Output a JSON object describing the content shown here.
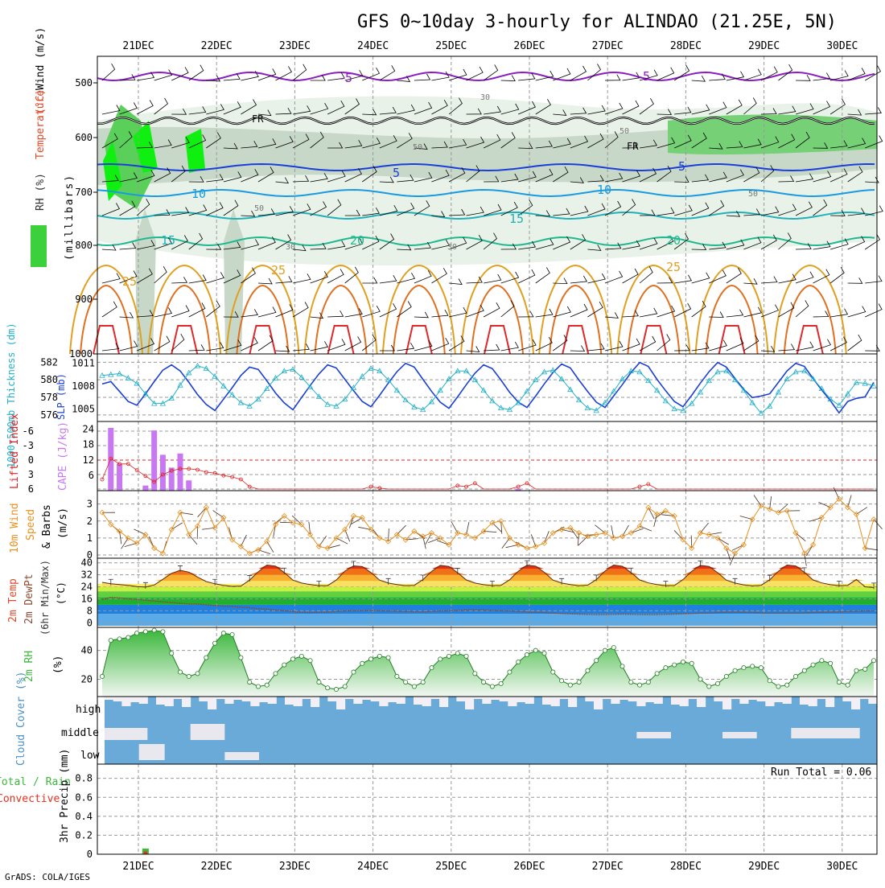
{
  "title": "GFS 0~10day 3-hourly for ALINDAO (21.25E, 5N)",
  "credit": "GrADS: COLA/IGES",
  "dates": [
    "21DEC",
    "22DEC",
    "23DEC",
    "24DEC",
    "25DEC",
    "26DEC",
    "27DEC",
    "28DEC",
    "29DEC",
    "30DEC"
  ],
  "colors": {
    "purple": "#8a1cc0",
    "blue": "#1a3fd8",
    "cyan": "#22b0c8",
    "orange": "#e89020",
    "green": "#3cb83c",
    "cloud": "#6aaad8",
    "rain": "#e83020"
  },
  "chart_data": [
    {
      "type": "line",
      "panel": "upper-air",
      "ylabel_parts": [
        "RH (%)",
        "Temperature",
        "(°C)",
        "Wind (m/s)"
      ],
      "ylabel_units": "(millibars)",
      "yticks": [
        "500",
        "600",
        "700",
        "800",
        "900",
        "1000"
      ],
      "ylim": [
        1000,
        450
      ],
      "contour_labels": [
        "-5",
        "-5",
        "FR",
        "FR",
        "5",
        "5",
        "10",
        "10",
        "15",
        "15",
        "20",
        "20",
        "25",
        "25",
        "25",
        "30",
        "30",
        "30",
        "50",
        "50",
        "50",
        "50"
      ]
    },
    {
      "type": "line",
      "panel": "thickness-slp",
      "ylabel_left": "1000-500mb Thickness (dm)",
      "ylabel_right": "SLP (mb)",
      "yticks_left": [
        "582",
        "580",
        "578",
        "576"
      ],
      "yticks_right": [
        "1011",
        "1008",
        "1005"
      ],
      "series": [
        {
          "name": "SLP (mb)",
          "color": "#1a3fd8",
          "values": [
            1008.3,
            1008.6,
            1007.3,
            1006.0,
            1005.5,
            1007.0,
            1008.6,
            1010.1,
            1010.8,
            1010.0,
            1008.5,
            1006.9,
            1005.6,
            1004.8,
            1006.3,
            1007.8,
            1009.4,
            1010.5,
            1010.2,
            1008.7,
            1007.1,
            1005.8,
            1004.9,
            1006.5,
            1008.1,
            1009.6,
            1010.8,
            1010.4,
            1008.9,
            1007.4,
            1006.0,
            1005.3,
            1006.8,
            1008.4,
            1009.9,
            1011.0,
            1010.5,
            1008.9,
            1007.3,
            1005.9,
            1005.1,
            1006.6,
            1008.2,
            1009.7,
            1010.8,
            1010.3,
            1008.8,
            1007.2,
            1005.9,
            1005.2,
            1006.7,
            1008.3,
            1009.8,
            1010.9,
            1010.4,
            1008.8,
            1007.3,
            1005.9,
            1005.2,
            1006.7,
            1008.2,
            1009.8,
            1011.1,
            1010.6,
            1008.9,
            1007.4,
            1006.0,
            1005.3,
            1006.8,
            1008.4,
            1009.9,
            1011.1,
            1010.5,
            1009.0,
            1007.6,
            1006.5,
            1006.7,
            1007.0,
            1008.5,
            1010.0,
            1011.0,
            1010.6,
            1009.0,
            1007.5,
            1006.1,
            1004.5,
            1006.0,
            1006.4,
            1006.6,
            1008.5
          ]
        },
        {
          "name": "1000-500mb Thickness (dm)",
          "color": "#22b0c8",
          "values": [
            580.5,
            580.6,
            580.7,
            580.2,
            579.6,
            578.4,
            577.3,
            577.3,
            577.9,
            579.4,
            580.8,
            581.6,
            581.3,
            580.4,
            579.3,
            578.3,
            577.4,
            577.0,
            577.8,
            579.0,
            580.2,
            581.0,
            581.2,
            580.3,
            579.2,
            578.1,
            577.2,
            577.0,
            577.8,
            579.1,
            580.4,
            581.3,
            581.0,
            580.0,
            578.8,
            577.7,
            576.9,
            576.6,
            577.5,
            578.8,
            580.1,
            581.0,
            581.0,
            580.0,
            578.8,
            577.6,
            576.8,
            576.6,
            577.4,
            578.7,
            580.0,
            580.9,
            581.1,
            580.1,
            578.9,
            577.7,
            576.8,
            576.5,
            577.4,
            578.7,
            580.1,
            581.0,
            580.9,
            579.9,
            578.8,
            577.6,
            576.7,
            576.5,
            577.3,
            578.6,
            579.9,
            580.9,
            581.0,
            580.0,
            578.8,
            577.4,
            576.2,
            577.0,
            578.6,
            580.1,
            580.9,
            581.0,
            580.1,
            579.0,
            577.8,
            577.1,
            578.4,
            579.7,
            579.6,
            579.3
          ]
        }
      ]
    },
    {
      "type": "bar",
      "panel": "cape-li",
      "ylabel_left": "Lifted Index",
      "ylabel_right": "CAPE (J/kg)",
      "yticks_left": [
        "-6",
        "-3",
        "0",
        "3",
        "6"
      ],
      "yticks_right": [
        "24",
        "18",
        "12",
        "6"
      ],
      "series": [
        {
          "name": "CAPE (J/kg)",
          "color": "#c878f0",
          "x": [
            1,
            2,
            5,
            6,
            7,
            8,
            9,
            10,
            48
          ],
          "values": [
            24.5,
            10.5,
            2.0,
            23.5,
            14.0,
            9.0,
            14.5,
            4.0,
            0.8
          ]
        },
        {
          "name": "Lifted Index",
          "color": "#e02020",
          "values": [
            4.0,
            -0.3,
            0.8,
            0.8,
            2.1,
            3.3,
            4.5,
            3.0,
            2.2,
            1.8,
            1.8,
            2.0,
            2.5,
            2.7,
            3.2,
            3.5,
            4.0,
            5.5,
            6.0,
            6.0,
            6.0,
            6.0,
            6.0,
            6.0,
            6.0,
            6.0,
            6.0,
            6.0,
            6.0,
            6.0,
            6.0,
            5.5,
            5.8,
            6.0,
            6.0,
            6.0,
            6.0,
            6.0,
            6.0,
            6.0,
            6.0,
            5.3,
            5.5,
            4.8,
            6.0,
            6.0,
            6.0,
            6.0,
            5.5,
            4.8,
            6.0,
            6.0,
            6.0,
            6.0,
            6.0,
            6.0,
            6.0,
            6.0,
            6.0,
            6.0,
            6.0,
            6.0,
            5.5,
            5.0,
            6.0,
            6.0,
            6.0,
            6.0,
            6.0,
            6.0,
            6.0,
            6.0,
            6.0,
            6.0,
            6.0,
            6.0,
            6.0,
            6.0,
            6.0,
            6.0,
            6.0,
            6.0,
            6.0,
            6.0,
            6.0,
            6.0,
            6.0,
            6.0,
            6.0,
            6.0
          ]
        }
      ]
    },
    {
      "type": "line",
      "panel": "wind10m",
      "ylabel_parts": [
        "10m Wind",
        "Speed",
        "& Barbs",
        "(m/s)"
      ],
      "yticks": [
        "3",
        "2",
        "1",
        "0"
      ],
      "ylim": [
        0,
        3.6
      ],
      "series": [
        {
          "name": "10m Wind Speed (m/s)",
          "color": "#e89020",
          "values": [
            2.5,
            1.8,
            1.4,
            1.0,
            0.7,
            1.2,
            0.4,
            0.1,
            1.5,
            2.5,
            1.2,
            1.7,
            2.8,
            1.6,
            2.2,
            0.9,
            0.5,
            0.1,
            0.3,
            0.8,
            1.8,
            2.3,
            1.9,
            1.8,
            1.2,
            0.5,
            0.4,
            1.0,
            1.5,
            2.3,
            2.2,
            1.5,
            1.0,
            0.8,
            1.2,
            0.9,
            1.4,
            1.1,
            1.3,
            1.0,
            0.6,
            1.3,
            1.2,
            1.0,
            1.4,
            1.9,
            2.0,
            1.0,
            0.6,
            0.4,
            0.5,
            0.7,
            1.3,
            1.5,
            1.6,
            1.3,
            1.1,
            1.2,
            1.3,
            1.0,
            1.1,
            1.3,
            1.7,
            2.8,
            2.4,
            2.6,
            2.3,
            0.9,
            0.4,
            1.3,
            1.2,
            1.0,
            0.4,
            0.1,
            0.6,
            2.1,
            2.9,
            2.7,
            2.5,
            2.6,
            1.3,
            0.1,
            0.6,
            2.2,
            2.8,
            3.3,
            2.8,
            2.4,
            0.4,
            2.1
          ]
        }
      ]
    },
    {
      "type": "area",
      "panel": "temperature",
      "ylabel_parts": [
        "2m Temp",
        "2m DewPt",
        "(6hr Min/Max)",
        "(°C)"
      ],
      "yticks": [
        "40",
        "32",
        "24",
        "16",
        "8",
        "0"
      ],
      "ylim": [
        -2,
        42
      ],
      "series": [
        {
          "name": "2m Temp (°C)",
          "color": "#e8601c",
          "values": [
            27.0,
            26.0,
            25.5,
            25.0,
            24.2,
            23.8,
            25.2,
            29.0,
            33.0,
            35.0,
            33.8,
            30.5,
            27.5,
            26.0,
            25.0,
            24.3,
            24.5,
            28.5,
            34.0,
            38.5,
            37.8,
            33.5,
            28.5,
            26.5,
            25.5,
            24.8,
            24.8,
            28.5,
            34.5,
            38.0,
            37.5,
            33.5,
            28.5,
            26.5,
            25.5,
            24.8,
            25.0,
            28.8,
            34.3,
            38.3,
            37.6,
            33.4,
            28.6,
            26.5,
            25.4,
            24.8,
            25.0,
            28.7,
            34.4,
            38.4,
            37.8,
            33.7,
            28.5,
            26.5,
            25.5,
            24.7,
            25.1,
            28.8,
            34.5,
            38.5,
            37.7,
            33.5,
            28.6,
            26.6,
            25.5,
            24.8,
            24.9,
            28.8,
            34.3,
            38.3,
            37.6,
            33.4,
            28.5,
            26.5,
            25.3,
            24.6,
            25.0,
            28.7,
            34.4,
            38.5,
            37.9,
            33.7,
            28.6,
            26.6,
            25.4,
            24.8,
            25.0,
            28.9,
            24.0,
            23.5
          ]
        },
        {
          "name": "2m DewPt (°C)",
          "color": "#8a4a30",
          "values": [
            15.5,
            17.0,
            16.5,
            16.0,
            15.5,
            15.0,
            14.5,
            14.0,
            13.5,
            13.0,
            12.5,
            12.5,
            12.0,
            11.5,
            11.0,
            10.8,
            10.5,
            10.0,
            9.5,
            9.0,
            8.5,
            8.0,
            7.5,
            7.0,
            6.8,
            7.0,
            7.2,
            7.5,
            7.8,
            8.0,
            8.0,
            8.2,
            8.0,
            7.8,
            7.6,
            7.5,
            7.4,
            7.3,
            7.5,
            7.8,
            8.0,
            8.2,
            8.5,
            8.6,
            8.5,
            8.2,
            8.0,
            7.8,
            7.5,
            7.3,
            7.0,
            6.8,
            6.5,
            6.2,
            6.0,
            5.8,
            5.6,
            5.5,
            5.5,
            5.6,
            5.8,
            5.6,
            5.5,
            5.5,
            5.5,
            5.6,
            5.8,
            6.0,
            6.2,
            6.4,
            6.5,
            6.8,
            7.0,
            7.2,
            7.0,
            6.8,
            6.6,
            6.5,
            6.5,
            6.5,
            6.5,
            6.6,
            6.8,
            7.0,
            7.2,
            7.3,
            7.5,
            7.6,
            7.8,
            7.8
          ]
        }
      ]
    },
    {
      "type": "area",
      "panel": "rh2m",
      "ylabel_parts": [
        "2m RH",
        "(%)"
      ],
      "yticks": [
        "40",
        "20"
      ],
      "ylim": [
        8,
        56
      ],
      "series": [
        {
          "name": "2m RH (%)",
          "color": "#3cb83c",
          "values": [
            22,
            47,
            48,
            49,
            52,
            53,
            54,
            53,
            38,
            25,
            22,
            24,
            35,
            45,
            52,
            51,
            35,
            18,
            15,
            16,
            24,
            30,
            34,
            36,
            33,
            18,
            14,
            13,
            15,
            25,
            31,
            34,
            36,
            35,
            22,
            18,
            15,
            18,
            28,
            34,
            36,
            38,
            36,
            24,
            18,
            15,
            17,
            25,
            32,
            37,
            40,
            38,
            25,
            19,
            16,
            18,
            26,
            33,
            40,
            42,
            29,
            18,
            16,
            18,
            24,
            28,
            30,
            32,
            31,
            20,
            15,
            17,
            22,
            26,
            28,
            29,
            28,
            19,
            15,
            16,
            22,
            26,
            30,
            33,
            31,
            18,
            16,
            26,
            27,
            33
          ]
        }
      ]
    },
    {
      "type": "bar",
      "panel": "cloud-cover",
      "ylabel": "Cloud Cover (%)",
      "yticks": [
        "high",
        "middle",
        "low"
      ]
    },
    {
      "type": "bar",
      "panel": "precip",
      "ylabel_left": [
        "Total / Rain",
        "Convective"
      ],
      "ylabel_right": "3hr Precip (mm)",
      "yticks": [
        "0.8",
        "0.6",
        "0.4",
        "0.2",
        "0"
      ],
      "ylim": [
        0,
        0.95
      ],
      "run_total": "Run Total = 0.06",
      "series": [
        {
          "name": "Total / Rain",
          "color": "#3cb83c",
          "x": [
            5
          ],
          "values": [
            0.06
          ]
        },
        {
          "name": "Convective",
          "color": "#e83020",
          "x": [
            5
          ],
          "values": [
            0.03
          ]
        }
      ]
    }
  ]
}
